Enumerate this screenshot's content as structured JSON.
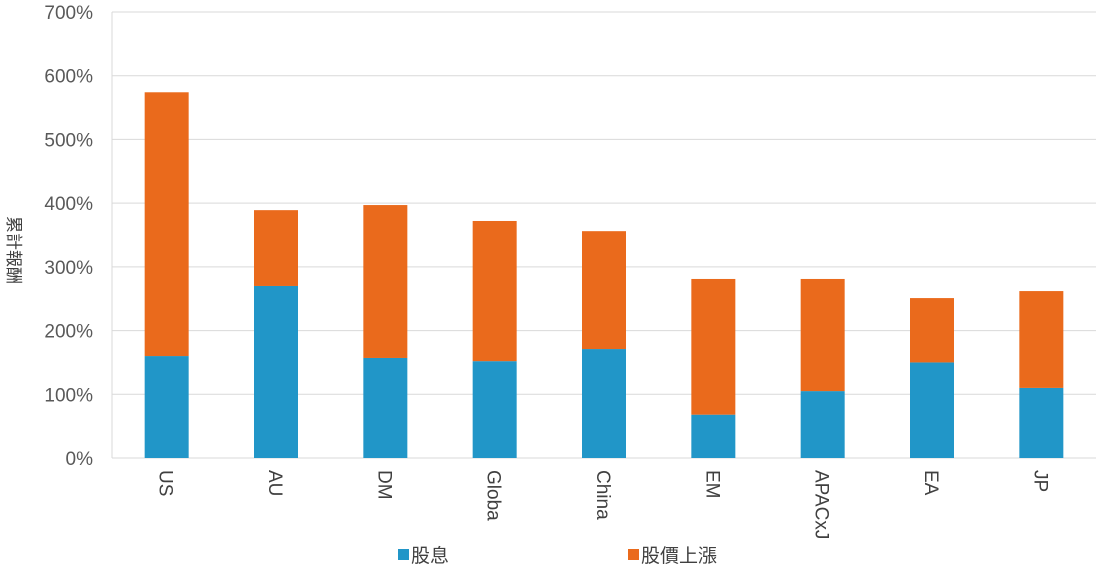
{
  "chart_data": {
    "type": "bar",
    "stacked": true,
    "categories": [
      "US",
      "AU",
      "DM",
      "Globa",
      "China",
      "EM",
      "APACxJ",
      "EA",
      "JP"
    ],
    "series": [
      {
        "name": "股息",
        "color": "#2196c8",
        "values": [
          160,
          270,
          157,
          152,
          171,
          68,
          105,
          150,
          110
        ]
      },
      {
        "name": "股價上漲",
        "color": "#ea6a1c",
        "values": [
          414,
          119,
          240,
          220,
          185,
          213,
          176,
          101,
          152
        ]
      }
    ],
    "ylabel": "累計報酬",
    "ylim": [
      0,
      700
    ],
    "yticks": [
      0,
      100,
      200,
      300,
      400,
      500,
      600,
      700
    ],
    "ytick_labels": [
      "0%",
      "100%",
      "200%",
      "300%",
      "400%",
      "500%",
      "600%",
      "700%"
    ],
    "grid": true,
    "legend_position": "bottom"
  }
}
